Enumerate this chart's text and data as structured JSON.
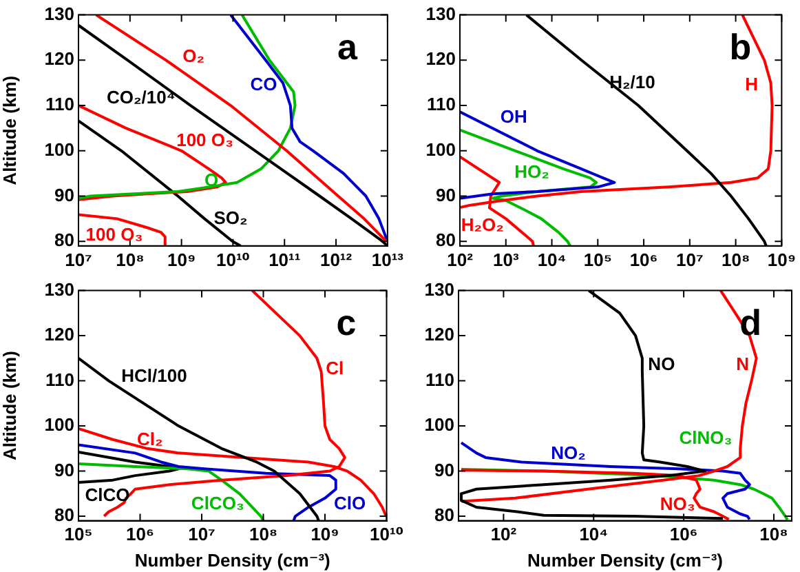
{
  "chart_data": [
    {
      "type": "line",
      "ylabel": "Altitude (km)",
      "log": "x",
      "xlim": [
        10000000.0,
        10000000000000.0
      ],
      "ylim": [
        79,
        130
      ],
      "xticks": [
        {
          "value": 10000000.0,
          "label": "10⁷"
        },
        {
          "value": 100000000.0,
          "label": "10⁸"
        },
        {
          "value": 1000000000.0,
          "label": "10⁹"
        },
        {
          "value": 10000000000.0,
          "label": "10¹⁰"
        },
        {
          "value": 100000000000.0,
          "label": "10¹¹"
        },
        {
          "value": 1000000000000.0,
          "label": "10¹²"
        },
        {
          "value": 10000000000000.0,
          "label": "10¹³"
        }
      ],
      "yticks": [
        80,
        90,
        100,
        110,
        120,
        130
      ],
      "annotations": [
        "a"
      ],
      "series": [
        {
          "name": "O₂",
          "color": "#ff0000",
          "x": [
            22000000.0,
            500000000.0,
            9000000000.0,
            110000000000.0,
            1100000000000.0,
            3500000000000.0,
            9500000000000.0
          ],
          "values": [
            130,
            120,
            110,
            100,
            90,
            85,
            80
          ]
        },
        {
          "name": "CO₂/10⁴",
          "color": "#000000",
          "x": [
            10000000.0,
            90000000.0,
            1500000000.0,
            27000000000.0,
            480000000000.0,
            2000000000000.0,
            8000000000000.0,
            10000000000000.0
          ],
          "values": [
            127.7,
            120,
            110,
            100,
            90,
            85,
            80,
            79
          ]
        },
        {
          "name": "CO",
          "color": "#0000cc",
          "x": [
            9000000000.0,
            43000000000.0,
            93000000000.0,
            130000000000.0,
            140000000000.0,
            200000000000.0,
            360000000000.0,
            1400000000000.0,
            3800000000000.0,
            6800000000000.0,
            10000000000000.0
          ],
          "values": [
            130,
            120,
            115,
            110,
            105,
            102,
            100,
            95,
            90,
            85,
            80
          ]
        },
        {
          "name": "O",
          "color": "#00bb00",
          "x": [
            15000000000.0,
            51000000000.0,
            150000000000.0,
            160000000000.0,
            130000000000.0,
            76000000000.0,
            35000000000.0,
            12000000000.0,
            3400000000.0,
            850000000.0,
            120000000.0,
            17000000.0,
            10000000.0
          ],
          "values": [
            130,
            120,
            113,
            110,
            105,
            100,
            96,
            93,
            92,
            91,
            90.5,
            90,
            89.5
          ]
        },
        {
          "name": "100 O₃",
          "color": "#ff0000",
          "x": [
            10000000.0,
            83000000.0,
            1000000000.0,
            3400000000.0,
            6000000000.0,
            7200000000.0,
            4900000000.0,
            1300000000.0,
            220000000.0,
            46000000.0,
            10000000.0
          ],
          "values": [
            110,
            105,
            100,
            96,
            94,
            93,
            92,
            91,
            90.5,
            90,
            89.2
          ]
        },
        {
          "name": "100 O₃",
          "color": "#ff0000",
          "x": [
            10000000.0,
            56000000.0,
            220000000.0,
            400000000.0,
            480000000.0,
            480000000.0
          ],
          "values": [
            85.9,
            85,
            83,
            82,
            81,
            79
          ]
        },
        {
          "name": "SO₂",
          "color": "#000000",
          "x": [
            10000000.0,
            68000000.0,
            850000000.0,
            2800000000.0,
            9800000000.0,
            14000000000.0
          ],
          "values": [
            106.6,
            100,
            90,
            85,
            80,
            79
          ]
        }
      ]
    },
    {
      "type": "line",
      "log": "x",
      "xlim": [
        100.0,
        1000000000.0
      ],
      "ylim": [
        79,
        130
      ],
      "xticks": [
        {
          "value": 100.0,
          "label": "10²"
        },
        {
          "value": 1000.0,
          "label": "10³"
        },
        {
          "value": 10000.0,
          "label": "10⁴"
        },
        {
          "value": 100000.0,
          "label": "10⁵"
        },
        {
          "value": 1000000.0,
          "label": "10⁶"
        },
        {
          "value": 10000000.0,
          "label": "10⁷"
        },
        {
          "value": 100000000.0,
          "label": "10⁸"
        },
        {
          "value": 1000000000.0,
          "label": "10⁹"
        }
      ],
      "yticks": [
        80,
        90,
        100,
        110,
        120,
        130
      ],
      "annotations": [
        "b"
      ],
      "series": [
        {
          "name": "H₂/10",
          "color": "#000000",
          "x": [
            2800.0,
            44000.0,
            760000.0,
            8700000.0,
            29000000.0,
            79000000.0,
            190000000.0,
            420000000.0,
            460000000.0
          ],
          "values": [
            130,
            120,
            110,
            100,
            95,
            90,
            85,
            80,
            79
          ]
        },
        {
          "name": "H",
          "color": "#ff0000",
          "x": [
            140000000.0,
            420000000.0,
            580000000.0,
            620000000.0,
            580000000.0,
            510000000.0,
            300000000.0,
            79000000.0,
            3500000.0,
            43000.0,
            4800.0,
            810.0,
            170.0,
            100.0
          ],
          "values": [
            130,
            120,
            115,
            110,
            100,
            96,
            94,
            93,
            92,
            91,
            90,
            89,
            88,
            87.5
          ]
        },
        {
          "name": "OH",
          "color": "#0000cc",
          "x": [
            100.0,
            4800.0,
            44000.0,
            130000.0,
            230000.0,
            100000.0,
            4800.0,
            520.0,
            100.0
          ],
          "values": [
            108.6,
            100,
            96,
            94,
            93,
            92,
            91,
            90.5,
            89.5
          ]
        },
        {
          "name": "HO₂",
          "color": "#00bb00",
          "x": [
            100.0,
            1600.0,
            18000.0,
            68000.0,
            93000.0,
            68000.0,
            4800.0,
            810.0,
            520.0,
            1000.0,
            2500.0,
            5900.0,
            14000.0,
            22000.0,
            25000.0
          ],
          "values": [
            104.6,
            100,
            96,
            94,
            93,
            92,
            91,
            90,
            89.5,
            89,
            87,
            85,
            82,
            80,
            79
          ]
        },
        {
          "name": "H₂O₂",
          "color": "#ff0000",
          "x": [
            100.0,
            720.0,
            470.0,
            440.0,
            1000.0,
            3800.0,
            4000.0
          ],
          "values": [
            98.7,
            93,
            90,
            87.4,
            85,
            80,
            79
          ]
        }
      ]
    },
    {
      "type": "line",
      "xlabel": "Number Density (cm⁻³)",
      "ylabel": "Altitude (km)",
      "log": "x",
      "xlim": [
        100000.0,
        10000000000.0
      ],
      "ylim": [
        79,
        130
      ],
      "xticks": [
        {
          "value": 100000.0,
          "label": "10⁵"
        },
        {
          "value": 1000000.0,
          "label": "10⁶"
        },
        {
          "value": 10000000.0,
          "label": "10⁷"
        },
        {
          "value": 100000000.0,
          "label": "10⁸"
        },
        {
          "value": 1000000000.0,
          "label": "10⁹"
        },
        {
          "value": 10000000000.0,
          "label": "10¹⁰"
        }
      ],
      "yticks": [
        80,
        90,
        100,
        110,
        120,
        130
      ],
      "annotations": [
        "c"
      ],
      "series": [
        {
          "name": "HCl/100",
          "color": "#000000",
          "x": [
            100000.0,
            310000.0,
            4200000.0,
            21000000.0,
            78000000.0,
            150000000.0,
            390000000.0,
            740000000.0,
            790000000.0
          ],
          "values": [
            115,
            110,
            100,
            95,
            92,
            90,
            85,
            80,
            79
          ]
        },
        {
          "name": "Cl",
          "color": "#ff0000",
          "x": [
            66000000.0,
            390000000.0,
            740000000.0,
            870000000.0,
            950000000.0,
            1000000000.0,
            1200000000.0,
            1700000000.0,
            2100000000.0,
            1700000000.0,
            1200000000.0,
            240000000.0,
            21000000.0,
            3000000.0,
            830000.0,
            710000.0,
            590000.0,
            550000.0,
            430000.0,
            310000.0,
            260000.0
          ],
          "values": [
            130,
            120,
            115,
            112,
            105,
            100,
            97,
            95,
            93,
            91,
            90,
            89,
            88,
            87,
            86,
            85,
            84,
            83,
            82,
            81,
            80
          ]
        },
        {
          "name": "Cl₂",
          "color": "#ff0000",
          "x": [
            100000.0,
            360000.0,
            1300000.0,
            4200000.0,
            48000000.0,
            540000000.0,
            1400000000.0,
            2300000000.0,
            3800000000.0,
            6200000000.0,
            8500000000.0,
            9800000000.0
          ],
          "values": [
            99.4,
            97,
            95,
            94,
            93,
            92,
            91,
            90,
            88,
            85,
            82,
            80
          ]
        },
        {
          "name": "ClO",
          "color": "#0000cc",
          "x": [
            100000.0,
            830000.0,
            2200000.0,
            4200000.0,
            11000000.0,
            110000000.0,
            1200000000.0,
            1500000000.0,
            1500000000.0,
            1000000000.0,
            540000000.0,
            330000000.0,
            310000000.0
          ],
          "values": [
            95.8,
            94,
            92,
            91,
            90.5,
            89.5,
            89,
            88,
            86,
            84,
            82,
            80,
            79
          ]
        },
        {
          "name": "ClCO₃",
          "color": "#00bb00",
          "x": [
            100000.0,
            830000.0,
            5800000.0,
            13000000.0,
            21000000.0,
            41000000.0,
            66000000.0,
            91000000.0,
            100000000.0
          ],
          "values": [
            91.6,
            91,
            90.5,
            90,
            88,
            85,
            82,
            80,
            79
          ]
        },
        {
          "name": "ClCO",
          "color": "#000000",
          "x": [
            100000.0,
            830000.0,
            3000000.0,
            4200000.0,
            3000000.0,
            830000.0,
            360000.0,
            100000.0
          ],
          "values": [
            94.2,
            92,
            91,
            90.5,
            90,
            89,
            88,
            87.5
          ]
        }
      ]
    },
    {
      "type": "line",
      "xlabel": "Number Density (cm⁻³)",
      "log": "x",
      "xlim": [
        10,
        250000000.0
      ],
      "ylim": [
        79,
        130
      ],
      "xticks": [
        {
          "value": 100.0,
          "label": "10²"
        },
        {
          "value": 10000.0,
          "label": "10⁴"
        },
        {
          "value": 1000000.0,
          "label": "10⁶"
        },
        {
          "value": 100000000.0,
          "label": "10⁸"
        }
      ],
      "yticks": [
        80,
        90,
        100,
        110,
        120,
        130
      ],
      "annotations": [
        "d"
      ],
      "series": [
        {
          "name": "NO",
          "color": "#000000",
          "x": [
            7800.0,
            38000.0,
            85000.0,
            120000.0,
            120000.0,
            130000.0,
            120000.0,
            130000.0,
            300000.0,
            1200000.0,
            3000000.0,
            470000.0,
            24000.0,
            780.0,
            25,
            11.5,
            11.5,
            25,
            200.0,
            780.0,
            76000.0,
            7400000.0
          ],
          "values": [
            130,
            125,
            120,
            115,
            112,
            100,
            94,
            92.5,
            92,
            91,
            90,
            89,
            88,
            87,
            86,
            85,
            83.5,
            82,
            81,
            80.2,
            80,
            79.5
          ]
        },
        {
          "name": "N",
          "color": "#ff0000",
          "x": [
            6600000.0,
            14000000.0,
            29000000.0,
            41000000.0,
            32000000.0,
            24000000.0,
            20000000.0,
            18000000.0,
            18000000.0,
            9300000.0,
            4700000.0,
            2200000.0,
            350000.0,
            7400.0,
            180.0,
            11.5
          ],
          "values": [
            130,
            125,
            120,
            115,
            110,
            105,
            100,
            95,
            93,
            91,
            90,
            89,
            88,
            86,
            84,
            83.3
          ]
        },
        {
          "name": "NO₂",
          "color": "#0000cc",
          "x": [
            11.5,
            25,
            40,
            250.0,
            24000.0,
            740000.0,
            7400000.0,
            18000000.0,
            23000000.0,
            29000000.0,
            23000000.0,
            9300000.0,
            7400000.0,
            9300000.0,
            18000000.0,
            26000000.0,
            29000000.0
          ],
          "values": [
            96.3,
            94,
            93,
            92,
            91,
            90.5,
            90,
            89.5,
            88,
            87,
            86,
            85,
            84,
            82,
            80.5,
            80,
            79.3
          ]
        },
        {
          "name": "NO₃",
          "color": "#ff0000",
          "x": [
            11.5,
            780.0,
            76000.0,
            740000.0,
            1900000.0,
            2100000.0,
            2300000.0,
            1900000.0,
            1700000.0,
            2300000.0,
            4700000.0,
            7400000.0,
            10000000.0
          ],
          "values": [
            90.2,
            90,
            89.5,
            89,
            88,
            87,
            86,
            85,
            84,
            82,
            81,
            80,
            79.3
          ]
        },
        {
          "name": "ClNO₃",
          "color": "#00bb00",
          "x": [
            11.5,
            780.0,
            240000.0,
            4700000.0,
            18000000.0,
            36000000.0,
            58000000.0,
            91000000.0,
            130000000.0,
            180000000.0,
            200000000.0
          ],
          "values": [
            90.4,
            90,
            89,
            88,
            87,
            86,
            85,
            84,
            82,
            80,
            79.2
          ]
        }
      ]
    }
  ]
}
